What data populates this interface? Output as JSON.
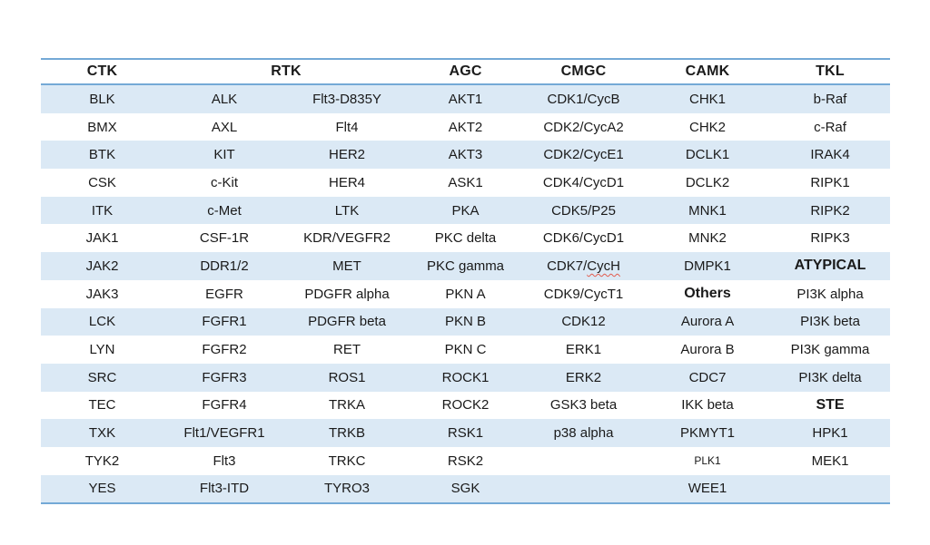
{
  "page": {
    "background": "#ffffff"
  },
  "table": {
    "description": "Kinase families table",
    "colors": {
      "border_line": "#74a9d6",
      "row_stripe": "#dbe9f5",
      "text": "#1a1a1a",
      "spellcheck_underline": "#e25b4d"
    },
    "header": {
      "groups": [
        {
          "label": "CTK",
          "span": 1
        },
        {
          "label": "RTK",
          "span": 2
        },
        {
          "label": "AGC",
          "span": 1
        },
        {
          "label": "CMGC",
          "span": 1
        },
        {
          "label": "CAMK",
          "span": 1
        },
        {
          "label": "TKL",
          "span": 1
        }
      ]
    },
    "rows": [
      [
        "BLK",
        "ALK",
        "Flt3-D835Y",
        "AKT1",
        "CDK1/CycB",
        "CHK1",
        "b-Raf"
      ],
      [
        "BMX",
        "AXL",
        "Flt4",
        "AKT2",
        "CDK2/CycA2",
        "CHK2",
        "c-Raf"
      ],
      [
        "BTK",
        "KIT",
        "HER2",
        "AKT3",
        "CDK2/CycE1",
        "DCLK1",
        "IRAK4"
      ],
      [
        "CSK",
        "c-Kit",
        "HER4",
        "ASK1",
        "CDK4/CycD1",
        "DCLK2",
        "RIPK1"
      ],
      [
        "ITK",
        "c-Met",
        "LTK",
        "PKA",
        "CDK5/P25",
        "MNK1",
        "RIPK2"
      ],
      [
        "JAK1",
        "CSF-1R",
        "KDR/VEGFR2",
        "PKC delta",
        "CDK6/CycD1",
        "MNK2",
        "RIPK3"
      ],
      [
        "JAK2",
        "DDR1/2",
        "MET",
        "PKC gamma",
        {
          "t": "CDK7/CycH",
          "wavy": "CycH"
        },
        "DMPK1",
        {
          "t": "ATYPICAL",
          "bold": true
        }
      ],
      [
        "JAK3",
        "EGFR",
        "PDGFR alpha",
        "PKN A",
        "CDK9/CycT1",
        {
          "t": "Others",
          "bold": true
        },
        "PI3K alpha"
      ],
      [
        "LCK",
        "FGFR1",
        "PDGFR beta",
        "PKN B",
        "CDK12",
        "Aurora A",
        "PI3K beta"
      ],
      [
        "LYN",
        "FGFR2",
        "RET",
        "PKN C",
        "ERK1",
        "Aurora B",
        "PI3K gamma"
      ],
      [
        "SRC",
        "FGFR3",
        "ROS1",
        "ROCK1",
        "ERK2",
        "CDC7",
        "PI3K delta"
      ],
      [
        "TEC",
        "FGFR4",
        "TRKA",
        "ROCK2",
        "GSK3 beta",
        "IKK beta",
        {
          "t": "STE",
          "bold": true
        }
      ],
      [
        "TXK",
        "Flt1/VEGFR1",
        "TRKB",
        "RSK1",
        "p38 alpha",
        "PKMYT1",
        "HPK1"
      ],
      [
        "TYK2",
        "Flt3",
        "TRKC",
        "RSK2",
        "",
        {
          "t": "PLK1",
          "small": true
        },
        "MEK1"
      ],
      [
        "YES",
        "Flt3-ITD",
        "TYRO3",
        "SGK",
        "",
        "WEE1",
        ""
      ]
    ]
  }
}
